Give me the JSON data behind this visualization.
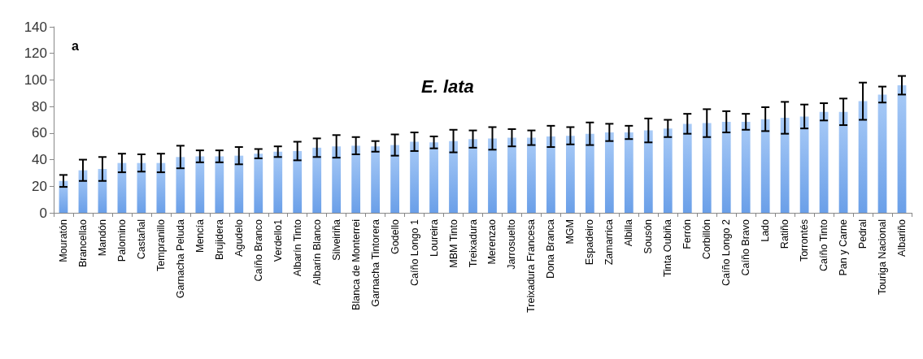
{
  "chart_data": {
    "type": "bar",
    "title": "E. lata",
    "annotations": [
      "a"
    ],
    "categories": [
      "Mouratón",
      "Brancellao",
      "Mandón",
      "Palomino",
      "Castañal",
      "Tempranillo",
      "Garnacha Peluda",
      "Mencía",
      "Brujidera",
      "Agudelo",
      "Caíño Branco",
      "Verdello1",
      "Albarín Tinto",
      "Albarín Blanco",
      "Silveiriña",
      "Blanca de Monterrei",
      "Garnacha Tintorera",
      "Godello",
      "Caíño Longo 1",
      "Loureira",
      "MBM Tinto",
      "Treixadura",
      "Merenzao",
      "Jarrosuelto",
      "Treixadura Francesa",
      "Dona Branca",
      "MGM",
      "Espadeiro",
      "Zamarrica",
      "Albilla",
      "Sousón",
      "Tinta Oubiña",
      "Ferrón",
      "Corbillón",
      "Caíño Longo 2",
      "Caíño Bravo",
      "Lado",
      "Ratiño",
      "Torrontés",
      "Caíño Tinto",
      "Pan y Carne",
      "Pedral",
      "Touriga Nacional",
      "Albariño"
    ],
    "values": [
      24,
      32,
      33,
      37.5,
      37.5,
      37.5,
      42,
      42.5,
      42.5,
      43,
      44.5,
      46,
      46.5,
      49,
      50,
      50.5,
      50,
      51,
      53.5,
      53,
      54,
      55.5,
      56,
      56.5,
      56.5,
      57.5,
      58,
      59.5,
      60.5,
      60.5,
      62,
      63.5,
      67,
      67.5,
      68.5,
      68.5,
      70.5,
      71.5,
      72.5,
      76,
      76,
      84,
      89,
      96
    ],
    "errors": [
      4.5,
      8,
      9,
      7,
      6.5,
      7,
      8.5,
      4.5,
      4.5,
      6.5,
      3.5,
      4,
      7,
      7,
      8.5,
      6.5,
      4,
      8,
      7,
      4.5,
      8.5,
      6.5,
      8.5,
      6.5,
      5.5,
      8,
      6.5,
      8.5,
      6.5,
      5,
      9,
      6.5,
      7.5,
      10.5,
      8,
      6,
      9,
      12,
      9,
      6.5,
      10,
      14,
      6,
      7
    ],
    "color": "#6a9fe8",
    "ylim": [
      0,
      140
    ],
    "yticks": [
      0,
      20,
      40,
      60,
      80,
      100,
      120,
      140
    ],
    "grid": false
  }
}
